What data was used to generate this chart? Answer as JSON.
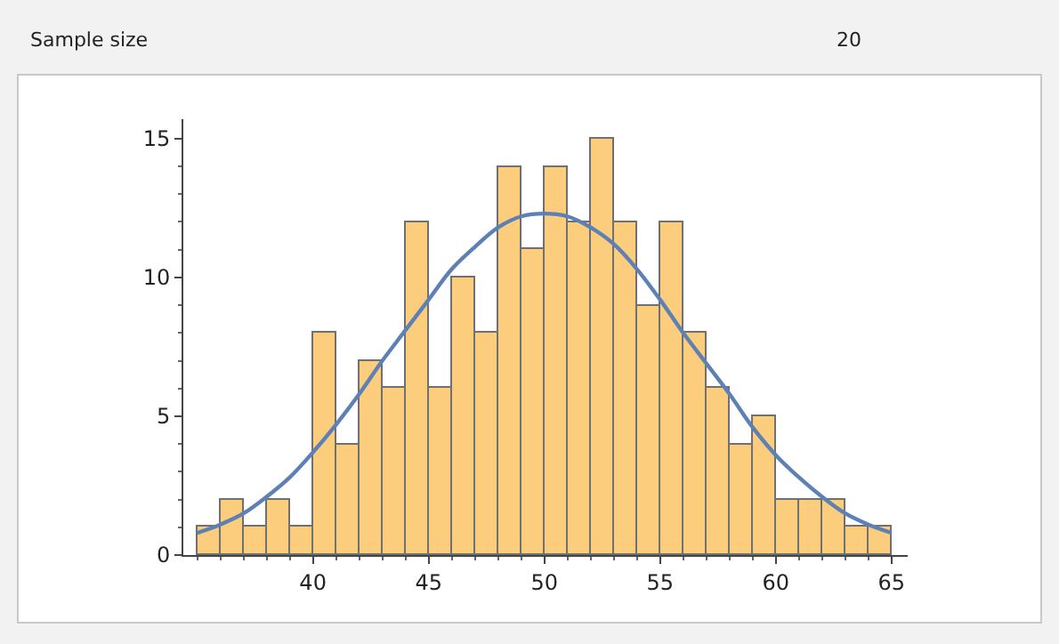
{
  "chart_data": {
    "type": "histogram",
    "bins": [
      35,
      36,
      37,
      38,
      39,
      40,
      41,
      42,
      43,
      44,
      45,
      46,
      47,
      48,
      49,
      50,
      51,
      52,
      53,
      54,
      55,
      56,
      57,
      58,
      59,
      60,
      61,
      62,
      63,
      64,
      65
    ],
    "series": [
      {
        "color": "#fdcd7e",
        "values": [
          1,
          2,
          1,
          2,
          1,
          8,
          4,
          7,
          6,
          12,
          6,
          10,
          8,
          14,
          11,
          14,
          12,
          15,
          12,
          9,
          12,
          8,
          6,
          4,
          5,
          2,
          2,
          2,
          1,
          1
        ]
      },
      {
        "type": "line",
        "color": "#5e81b5",
        "x": [
          35,
          36,
          37,
          38,
          39,
          40,
          41,
          42,
          43,
          44,
          45,
          46,
          47,
          48,
          49,
          50,
          51,
          52,
          53,
          54,
          55,
          56,
          57,
          58,
          59,
          60,
          61,
          62,
          63,
          64,
          65
        ],
        "values": [
          0.8,
          1.1,
          1.5,
          2.1,
          2.8,
          3.7,
          4.7,
          5.8,
          7.0,
          8.1,
          9.2,
          10.3,
          11.1,
          11.8,
          12.2,
          12.3,
          12.2,
          11.8,
          11.2,
          10.3,
          9.2,
          8.0,
          6.9,
          5.8,
          4.6,
          3.6,
          2.8,
          2.1,
          1.5,
          1.1,
          0.8
        ]
      }
    ],
    "xlim": [
      34.4,
      65.7
    ],
    "xticks": [
      40,
      45,
      50,
      55,
      60,
      65
    ],
    "ylim": [
      0,
      15.7
    ],
    "yticks": [
      0,
      5,
      10,
      15
    ],
    "marker": "none",
    "line_style": "solid",
    "annotations": [
      "Sample size",
      "20"
    ]
  }
}
